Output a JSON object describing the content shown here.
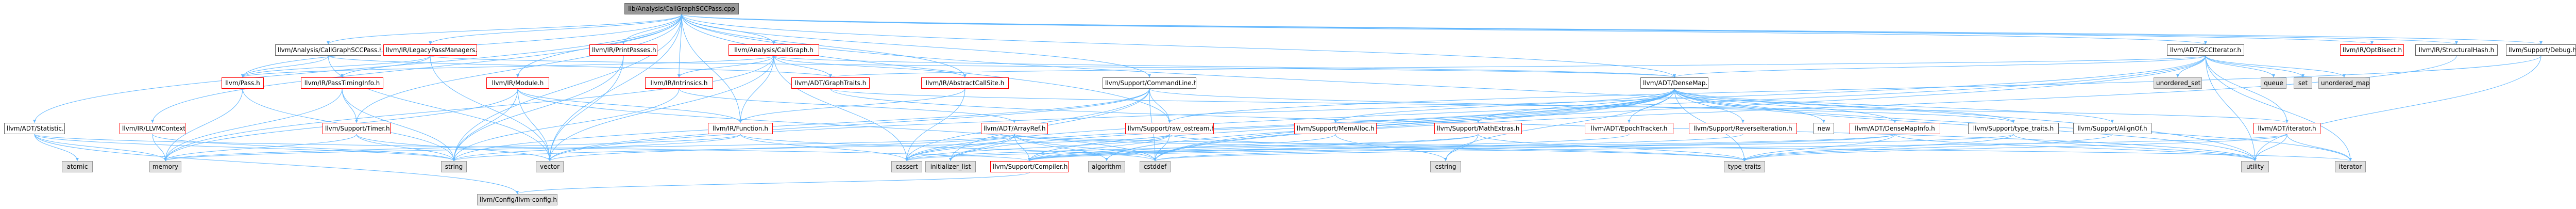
{
  "nodes": {
    "root": "lib/Analysis/CallGraphSCCPass.cpp",
    "n_statistic": "llvm/ADT/Statistic.h",
    "n_llvmcontext": "llvm/IR/LLVMContext.h",
    "n_callgraphsccpass": "llvm/Analysis/CallGraphSCCPass.h",
    "n_legacypassmanagers": "llvm/IR/LegacyPassManagers.h",
    "n_printpasses": "llvm/IR/PrintPasses.h",
    "n_callgraph": "llvm/Analysis/CallGraph.h",
    "n_pass": "llvm/Pass.h",
    "n_passtiminginfo": "llvm/IR/PassTimingInfo.h",
    "n_module": "llvm/IR/Module.h",
    "n_intrinsics": "llvm/IR/Intrinsics.h",
    "n_graphtraits": "llvm/ADT/GraphTraits.h",
    "n_abstractcallsite": "llvm/IR/AbstractCallSite.h",
    "n_commandline": "llvm/Support/CommandLine.h",
    "n_scciterator": "llvm/ADT/SCCIterator.h",
    "n_densemap": "llvm/ADT/DenseMap.h",
    "n_optbisect": "llvm/IR/OptBisect.h",
    "n_structuralhash": "llvm/IR/StructuralHash.h",
    "n_debug": "llvm/Support/Debug.h",
    "n_timer": "llvm/Support/Timer.h",
    "n_function": "llvm/IR/Function.h",
    "n_arrayref": "llvm/ADT/ArrayRef.h",
    "n_rawostream": "llvm/Support/raw_ostream.h",
    "n_memalloc": "llvm/Support/MemAlloc.h",
    "n_mathextras": "llvm/Support/MathExtras.h",
    "n_epochtracker": "llvm/ADT/EpochTracker.h",
    "n_reverseiteration": "llvm/Support/ReverseIteration.h",
    "n_new": "new",
    "n_densemapinfo": "llvm/ADT/DenseMapInfo.h",
    "n_typetraits_h": "llvm/Support/type_traits.h",
    "n_alignof": "llvm/Support/AlignOf.h",
    "n_adt_iterator": "llvm/ADT/iterator.h",
    "n_unordered_set": "unordered_set",
    "n_queue": "queue",
    "n_set": "set",
    "n_unordered_map": "unordered_map",
    "n_atomic": "atomic",
    "n_memory": "memory",
    "n_string": "string",
    "n_vector": "vector",
    "n_cassert": "cassert",
    "n_initializer_list": "initializer_list",
    "n_compiler": "llvm/Support/Compiler.h",
    "n_algorithm": "algorithm",
    "n_cstddef": "cstddef",
    "n_cstring": "cstring",
    "n_type_traits": "type_traits",
    "n_utility": "utility",
    "n_iterator": "iterator",
    "n_llvmconfig": "llvm/Config/llvm-config.h"
  },
  "colors": {
    "edge": "#63b8ff",
    "red_border": "#ff0000",
    "lib_fill": "#e0e0e0",
    "root_fill": "#999999"
  }
}
